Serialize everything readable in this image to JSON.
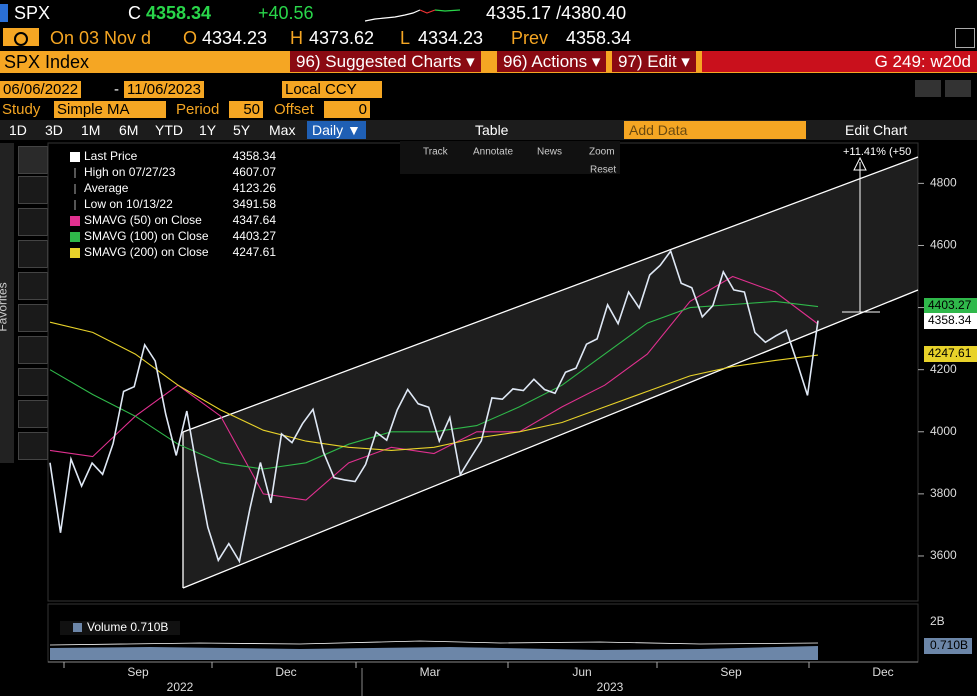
{
  "header": {
    "ticker": "SPX",
    "c_label": "C",
    "last": "4358.34",
    "change": "+40.56",
    "range": "4335.17 /4380.40"
  },
  "quote": {
    "date": "On 03 Nov d",
    "open_label": "O",
    "open": "4334.23",
    "high_label": "H",
    "high": "4373.62",
    "low_label": "L",
    "low": "4334.23",
    "prev_label": "Prev",
    "prev": "4358.34"
  },
  "menu": {
    "security": "SPX Index",
    "items": [
      "96) Suggested Charts ▾",
      "96) Actions ▾",
      "97) Edit ▾"
    ],
    "function": "G 249: w20d"
  },
  "controls": {
    "start": "06/06/2022",
    "separator": "-",
    "end": "11/06/2023",
    "currency": "Local CCY",
    "study_label": "Study",
    "study": "Simple MA",
    "period_label": "Period",
    "period": "50",
    "offset_label": "Offset",
    "offset": "0"
  },
  "toolbar": {
    "periods": [
      "1D",
      "3D",
      "1M",
      "6M",
      "YTD",
      "1Y",
      "5Y",
      "Max"
    ],
    "frequency": "Daily ▼",
    "table": "Table",
    "add_data": "Add Data",
    "edit": "Edit Chart"
  },
  "chart_tools": [
    "Track",
    "Annotate",
    "News",
    "Zoom",
    "Reset"
  ],
  "sidebar": {
    "label": "Favorites"
  },
  "chart_data": {
    "type": "line",
    "legend": [
      {
        "label": "Last Price",
        "value": "4358.34"
      },
      {
        "label": "High on 07/27/23",
        "value": "4607.07"
      },
      {
        "label": "Average",
        "value": "4123.26"
      },
      {
        "label": "Low on 10/13/22",
        "value": "3491.58"
      },
      {
        "label": "SMAVG (50)  on Close",
        "value": "4347.64"
      },
      {
        "label": "SMAVG (100)  on Close",
        "value": "4403.27"
      },
      {
        "label": "SMAVG (200)  on Close",
        "value": "4247.61"
      }
    ],
    "series": [
      {
        "name": "Last Price",
        "color": "#dfe8f5",
        "values": [
          3900,
          3675,
          3912,
          3825,
          3899,
          3863,
          3962,
          4130,
          4145,
          4280,
          4228,
          4057,
          3924,
          4067,
          3873,
          3693,
          3586,
          3640,
          3583,
          3752,
          3901,
          3771,
          3993,
          3965,
          4026,
          4072,
          3934,
          3852,
          3845,
          3840,
          3895,
          3999,
          3973,
          4070,
          4136,
          4090,
          4079,
          3970,
          4046,
          3862,
          3917,
          3971,
          4109,
          4105,
          4138,
          4133,
          4169,
          4136,
          4124,
          4192,
          4205,
          4282,
          4299,
          4409,
          4348,
          4450,
          4399,
          4505,
          4536,
          4582,
          4478,
          4464,
          4370,
          4406,
          4515,
          4457,
          4450,
          4320,
          4288,
          4309,
          4327,
          4224,
          4117,
          4358
        ]
      },
      {
        "name": "SMAVG (50)",
        "color": "#e0308f",
        "values": [
          3940,
          3920,
          4050,
          4150,
          4050,
          3800,
          3780,
          3900,
          3950,
          3930,
          4000,
          4000,
          4080,
          4150,
          4250,
          4420,
          4500,
          4450,
          4347
        ]
      },
      {
        "name": "SMAVG (100)",
        "color": "#2fb84a",
        "values": [
          4200,
          4120,
          4050,
          3960,
          3900,
          3880,
          3900,
          3960,
          4000,
          4000,
          4020,
          4080,
          4150,
          4250,
          4350,
          4400,
          4410,
          4420,
          4403
        ]
      },
      {
        "name": "SMAVG (200)",
        "color": "#e8d22a",
        "values": [
          4353,
          4320,
          4250,
          4150,
          4070,
          4005,
          3970,
          3950,
          3940,
          3950,
          3980,
          4000,
          4030,
          4080,
          4130,
          4180,
          4210,
          4230,
          4247
        ]
      }
    ],
    "ylim": [
      3455,
      4930
    ],
    "yticks": [
      3600,
      3800,
      4000,
      4200,
      4400,
      4600,
      4800
    ],
    "xticks": [
      "Sep",
      "Dec",
      "Mar",
      "Jun",
      "Sep",
      "Dec"
    ],
    "years": [
      "2022",
      "2023"
    ],
    "price_tags": [
      "4403.27",
      "4358.34",
      "4247.61"
    ],
    "annotation": "+11.41% (+50",
    "volume": {
      "label": "Volume 0.710B",
      "ticks": [
        "2B",
        "0.710B"
      ]
    }
  }
}
